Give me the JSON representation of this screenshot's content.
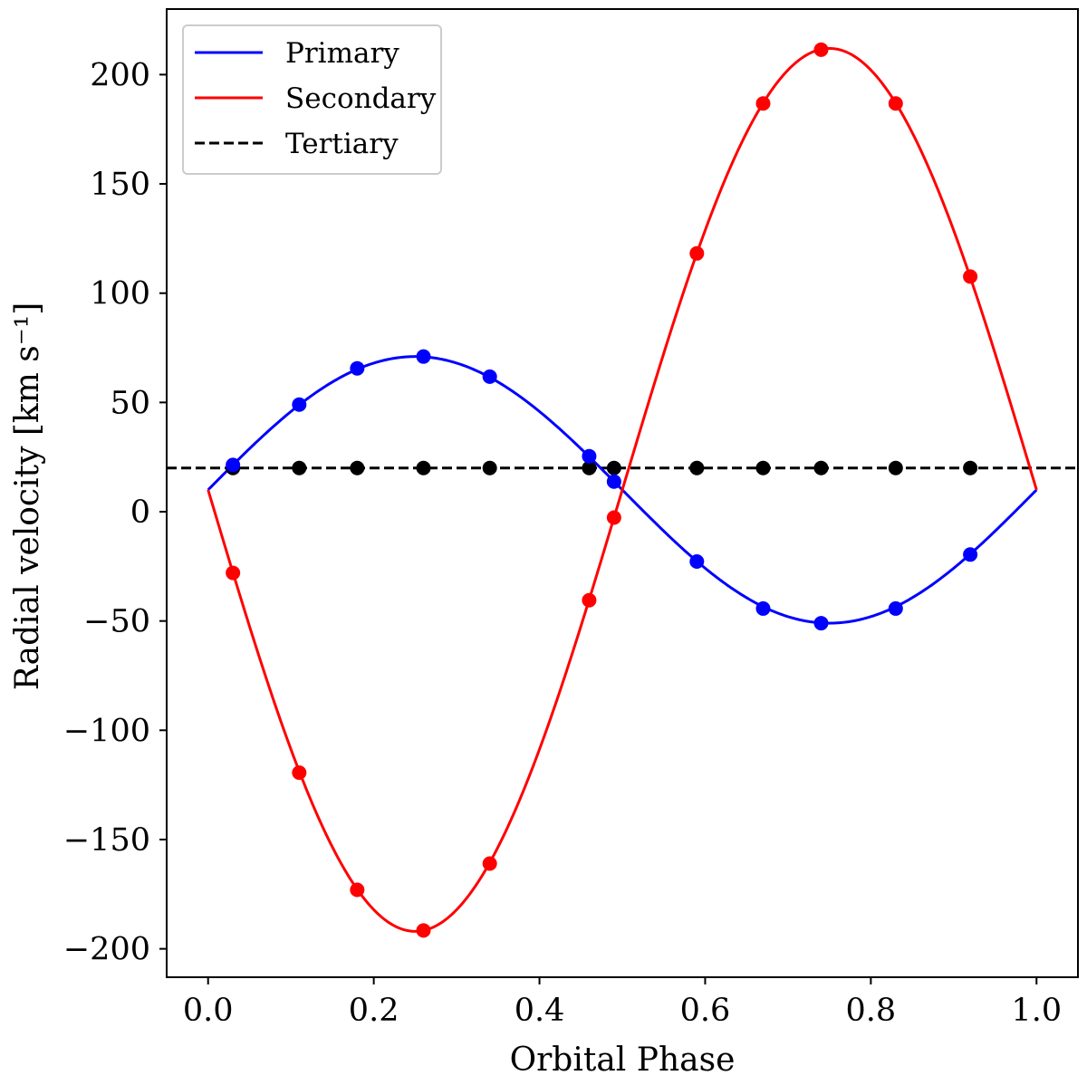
{
  "chart_data": {
    "type": "line",
    "title": "",
    "xlabel": "Orbital Phase",
    "ylabel": "Radial velocity [km s⁻¹]",
    "xlim": [
      -0.05,
      1.05
    ],
    "ylim": [
      -213,
      230
    ],
    "xticks": [
      0.0,
      0.2,
      0.4,
      0.6,
      0.8,
      1.0
    ],
    "xtick_labels": [
      "0.0",
      "0.2",
      "0.4",
      "0.6",
      "0.8",
      "1.0"
    ],
    "yticks": [
      -200,
      -150,
      -100,
      -50,
      0,
      50,
      100,
      150,
      200
    ],
    "ytick_labels": [
      "−200",
      "−150",
      "−100",
      "−50",
      "0",
      "50",
      "100",
      "150",
      "200"
    ],
    "legend_position": "top-left",
    "series": [
      {
        "name": "Primary",
        "color": "#0000ff",
        "style": "solid",
        "curve": {
          "gamma": 10,
          "K": 61
        },
        "points": {
          "x": [
            0.03,
            0.11,
            0.18,
            0.26,
            0.34,
            0.46,
            0.49,
            0.59,
            0.67,
            0.74,
            0.83,
            0.92
          ],
          "y": [
            21.4,
            49.0,
            65.6,
            71.0,
            61.8,
            25.4,
            13.8,
            -22.8,
            -44.3,
            -51.0,
            -44.3,
            -19.6
          ]
        }
      },
      {
        "name": "Secondary",
        "color": "#ff0000",
        "style": "solid",
        "curve": {
          "gamma": 10,
          "K": -202
        },
        "points": {
          "x": [
            0.03,
            0.11,
            0.18,
            0.26,
            0.34,
            0.46,
            0.49,
            0.59,
            0.67,
            0.74,
            0.83,
            0.92
          ],
          "y": [
            -28.0,
            -119.4,
            -173.0,
            -191.6,
            -161.0,
            -40.5,
            -2.7,
            118.2,
            186.8,
            211.4,
            186.8,
            107.6
          ]
        }
      },
      {
        "name": "Tertiary",
        "color": "#000000",
        "style": "dashed",
        "constant": 20,
        "points": {
          "x": [
            0.03,
            0.11,
            0.18,
            0.26,
            0.34,
            0.46,
            0.49,
            0.59,
            0.67,
            0.74,
            0.83,
            0.92
          ],
          "y": [
            20,
            20,
            20,
            20,
            20,
            20,
            20,
            20,
            20,
            20,
            20,
            20
          ]
        }
      }
    ]
  }
}
